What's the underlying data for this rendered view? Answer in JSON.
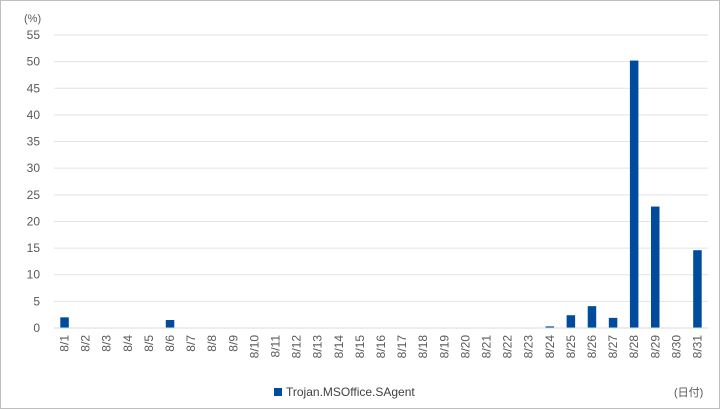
{
  "chart_data": {
    "type": "bar",
    "title": "",
    "ylabel_unit": "(%)",
    "xlabel_unit": "(日付)",
    "ylim": [
      0,
      55
    ],
    "yticks": [
      0,
      5,
      10,
      15,
      20,
      25,
      30,
      35,
      40,
      45,
      50,
      55
    ],
    "grid": true,
    "legend_position": "bottom",
    "categories": [
      "8/1",
      "8/2",
      "8/3",
      "8/4",
      "8/5",
      "8/6",
      "8/7",
      "8/8",
      "8/9",
      "8/10",
      "8/11",
      "8/12",
      "8/13",
      "8/14",
      "8/15",
      "8/16",
      "8/17",
      "8/18",
      "8/19",
      "8/20",
      "8/21",
      "8/22",
      "8/23",
      "8/24",
      "8/25",
      "8/26",
      "8/27",
      "8/28",
      "8/29",
      "8/30",
      "8/31"
    ],
    "series": [
      {
        "name": "Trojan.MSOffice.SAgent",
        "color": "#004b9b",
        "values": [
          2.0,
          0,
          0,
          0,
          0,
          1.5,
          0,
          0,
          0,
          0,
          0,
          0,
          0,
          0,
          0,
          0,
          0,
          0,
          0,
          0,
          0,
          0,
          0,
          0.3,
          2.4,
          4.1,
          1.9,
          50.2,
          22.8,
          0,
          14.6
        ]
      }
    ]
  }
}
